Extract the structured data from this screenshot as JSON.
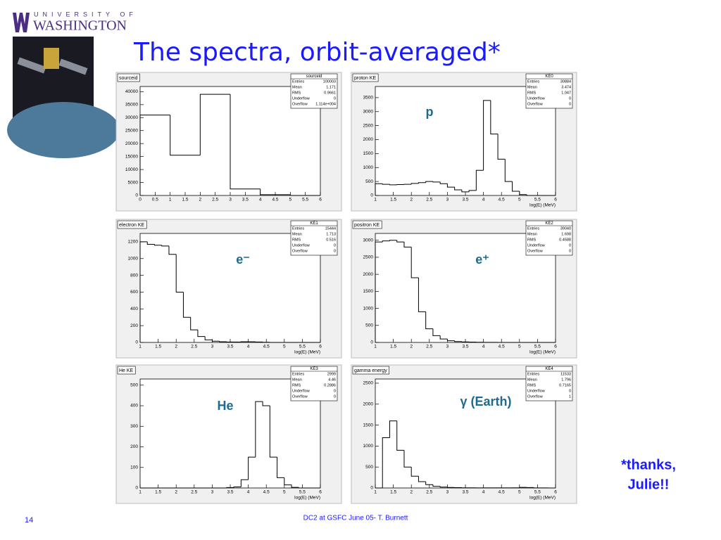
{
  "slide": {
    "logo_top": "UNIVERSITY OF",
    "logo_bottom": "WASHINGTON",
    "title": "The spectra, orbit-averaged*",
    "thanks": [
      "*thanks,",
      "Julie!!"
    ],
    "page_number": "14",
    "footer": "DC2 at GSFC June 05- T. Burnett"
  },
  "chart_data": [
    {
      "type": "histogram",
      "title": "sourceid",
      "bins": [
        0,
        1,
        2,
        3,
        4,
        5,
        6
      ],
      "values": [
        31000,
        15500,
        39000,
        2500,
        300,
        0
      ],
      "xlim": [
        0,
        6
      ],
      "ylim": [
        0,
        42000
      ],
      "xticks": [
        0,
        0.5,
        1,
        1.5,
        2,
        2.5,
        3,
        3.5,
        4,
        4.5,
        5,
        5.5,
        6
      ],
      "yticks": [
        0,
        5000,
        10000,
        15000,
        20000,
        25000,
        30000,
        35000,
        40000
      ],
      "stats": {
        "title": "sourceid",
        "rows": [
          [
            "Entries",
            "100003"
          ],
          [
            "Mean",
            "1.171"
          ],
          [
            "RMS",
            "0.9661"
          ],
          [
            "Underflow",
            "0"
          ],
          [
            "Overflow",
            "1.114e+004"
          ]
        ]
      }
    },
    {
      "type": "histogram",
      "title": "proton KE",
      "xlabel": "log(E) (MeV)",
      "annotation": "p",
      "bins": [
        1,
        1.2,
        1.4,
        1.6,
        1.8,
        2,
        2.2,
        2.4,
        2.6,
        2.8,
        3,
        3.2,
        3.4,
        3.6,
        3.8,
        4,
        4.2,
        4.4,
        4.6,
        4.8,
        5,
        5.2,
        5.4,
        5.6,
        5.8,
        6
      ],
      "values": [
        420,
        400,
        380,
        390,
        400,
        430,
        460,
        500,
        480,
        420,
        300,
        200,
        130,
        180,
        900,
        3400,
        2200,
        1300,
        500,
        150,
        30,
        0,
        0,
        0,
        0
      ],
      "xlim": [
        1,
        6
      ],
      "ylim": [
        0,
        3900
      ],
      "xticks": [
        1,
        1.5,
        2,
        2.5,
        3,
        3.5,
        4,
        4.5,
        5,
        5.5,
        6
      ],
      "yticks": [
        0,
        500,
        1000,
        1500,
        2000,
        2500,
        3000,
        3500
      ],
      "stats": {
        "title": "KE0",
        "rows": [
          [
            "Entries",
            "30884"
          ],
          [
            "Mean",
            "3.474"
          ],
          [
            "RMS",
            "1.047"
          ],
          [
            "Underflow",
            "0"
          ],
          [
            "Overflow",
            "0"
          ]
        ]
      }
    },
    {
      "type": "histogram",
      "title": "electron KE",
      "xlabel": "log(E) (MeV)",
      "annotation": "e⁻",
      "bins": [
        1,
        1.2,
        1.4,
        1.6,
        1.8,
        2,
        2.2,
        2.4,
        2.6,
        2.8,
        3,
        3.2,
        3.4,
        3.6,
        3.8,
        4,
        4.2,
        4.4,
        4.6,
        4.8,
        5,
        5.2,
        5.4,
        5.6,
        5.8,
        6
      ],
      "values": [
        1200,
        1170,
        1160,
        1150,
        1050,
        600,
        300,
        150,
        70,
        30,
        15,
        8,
        5,
        5,
        8,
        8,
        5,
        2,
        0,
        0,
        0,
        0,
        0,
        0,
        0
      ],
      "xlim": [
        1,
        6
      ],
      "ylim": [
        0,
        1300
      ],
      "xticks": [
        1,
        1.5,
        2,
        2.5,
        3,
        3.5,
        4,
        4.5,
        5,
        5.5,
        6
      ],
      "yticks": [
        0,
        200,
        400,
        600,
        800,
        1000,
        1200
      ],
      "stats": {
        "title": "KE1",
        "rows": [
          [
            "Entries",
            "15444"
          ],
          [
            "Mean",
            "1.713"
          ],
          [
            "RMS",
            "0.516"
          ],
          [
            "Underflow",
            "0"
          ],
          [
            "Overflow",
            "0"
          ]
        ]
      }
    },
    {
      "type": "histogram",
      "title": "positron KE",
      "xlabel": "log(E) (MeV)",
      "annotation": "e⁺",
      "bins": [
        1,
        1.2,
        1.4,
        1.6,
        1.8,
        2,
        2.2,
        2.4,
        2.6,
        2.8,
        3,
        3.2,
        3.4,
        3.6,
        3.8,
        4,
        4.2,
        4.4,
        4.6,
        4.8,
        5,
        5.2,
        5.4,
        5.6,
        5.8,
        6
      ],
      "values": [
        2950,
        2980,
        3000,
        2950,
        2800,
        1900,
        900,
        400,
        200,
        100,
        50,
        25,
        15,
        10,
        5,
        3,
        2,
        0,
        0,
        0,
        0,
        0,
        0,
        0,
        0
      ],
      "xlim": [
        1,
        6
      ],
      "ylim": [
        0,
        3200
      ],
      "xticks": [
        1,
        1.5,
        2,
        2.5,
        3,
        3.5,
        4,
        4.5,
        5,
        5.5,
        6
      ],
      "yticks": [
        0,
        500,
        1000,
        1500,
        2000,
        2500,
        3000
      ],
      "stats": {
        "title": "KE2",
        "rows": [
          [
            "Entries",
            "39040"
          ],
          [
            "Mean",
            "1.698"
          ],
          [
            "RMS",
            "0.4588"
          ],
          [
            "Underflow",
            "0"
          ],
          [
            "Overflow",
            "0"
          ]
        ]
      }
    },
    {
      "type": "histogram",
      "title": "He KE",
      "xlabel": "log(E) (MeV)",
      "annotation": "He",
      "bins": [
        1,
        1.2,
        1.4,
        1.6,
        1.8,
        2,
        2.2,
        2.4,
        2.6,
        2.8,
        3,
        3.2,
        3.4,
        3.6,
        3.8,
        4,
        4.2,
        4.4,
        4.6,
        4.8,
        5,
        5.2,
        5.4,
        5.6,
        5.8,
        6
      ],
      "values": [
        0,
        0,
        0,
        0,
        0,
        0,
        0,
        0,
        0,
        0,
        0,
        0,
        2,
        5,
        40,
        150,
        420,
        400,
        150,
        50,
        15,
        3,
        0,
        0,
        0
      ],
      "xlim": [
        1,
        6
      ],
      "ylim": [
        0,
        530
      ],
      "xticks": [
        1,
        1.5,
        2,
        2.5,
        3,
        3.5,
        4,
        4.5,
        5,
        5.5,
        6
      ],
      "yticks": [
        0,
        100,
        200,
        300,
        400,
        500
      ],
      "stats": {
        "title": "KE3",
        "rows": [
          [
            "Entries",
            "2999"
          ],
          [
            "Mean",
            "4.46"
          ],
          [
            "RMS",
            "0.2886"
          ],
          [
            "Underflow",
            "0"
          ],
          [
            "Overflow",
            "0"
          ]
        ]
      }
    },
    {
      "type": "histogram",
      "title": "gamma energy",
      "xlabel": "log(E) (MeV)",
      "annotation": "γ (Earth)",
      "bins": [
        1,
        1.2,
        1.4,
        1.6,
        1.8,
        2,
        2.2,
        2.4,
        2.6,
        2.8,
        3,
        3.2,
        3.4,
        3.6,
        3.8,
        4,
        4.2,
        4.4,
        4.6,
        4.8,
        5,
        5.2,
        5.4,
        5.6,
        5.8,
        6
      ],
      "values": [
        0,
        1200,
        1600,
        900,
        500,
        280,
        150,
        80,
        40,
        20,
        12,
        8,
        5,
        4,
        3,
        3,
        3,
        3,
        3,
        5,
        15,
        10,
        3,
        2,
        0
      ],
      "xlim": [
        1,
        6
      ],
      "ylim": [
        0,
        2600
      ],
      "xticks": [
        1,
        1.5,
        2,
        2.5,
        3,
        3.5,
        4,
        4.5,
        5,
        5.5,
        6
      ],
      "yticks": [
        0,
        500,
        1000,
        1500,
        2000,
        2500
      ],
      "stats": {
        "title": "KE4",
        "rows": [
          [
            "Entries",
            "11533"
          ],
          [
            "Mean",
            "1.796"
          ],
          [
            "RMS",
            "0.7165"
          ],
          [
            "Underflow",
            "0"
          ],
          [
            "Overflow",
            "1"
          ]
        ]
      }
    }
  ]
}
